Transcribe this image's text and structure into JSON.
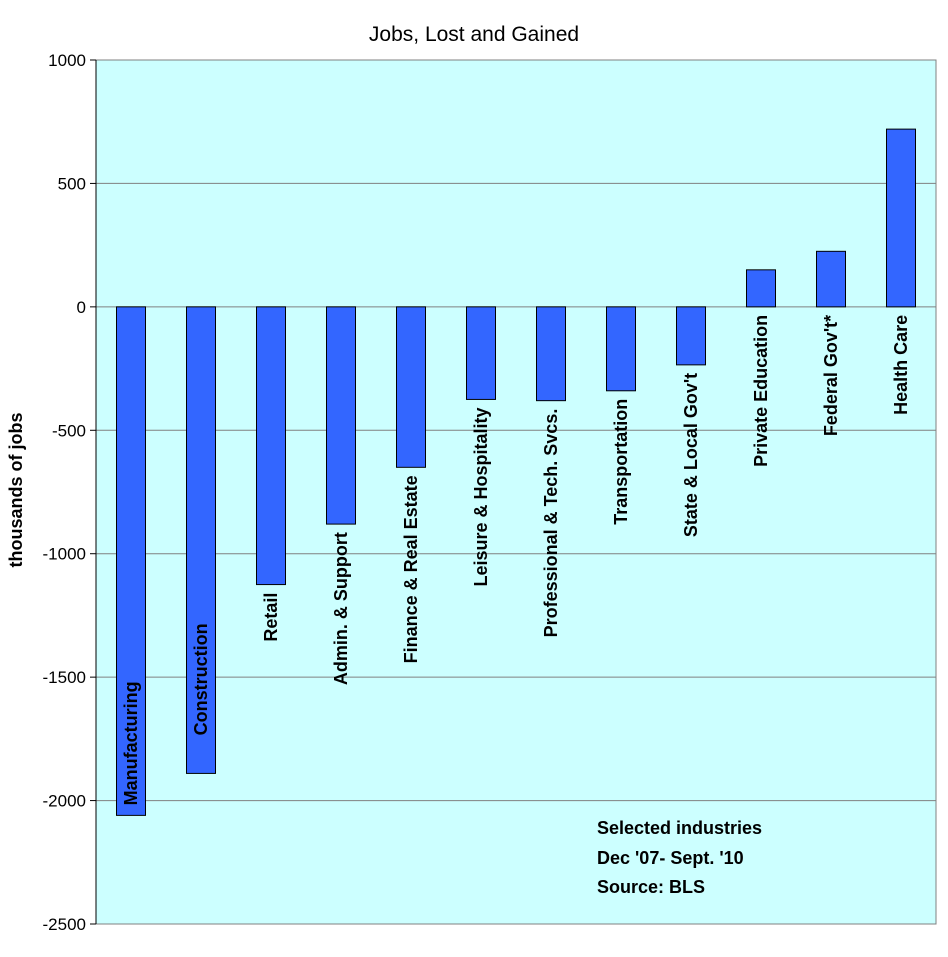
{
  "chart_data": {
    "type": "bar",
    "title": "Jobs, Lost and Gained",
    "ylabel": "thousands of jobs",
    "xlabel": "",
    "ylim": [
      -2500,
      1000
    ],
    "yticks": [
      "1000",
      "500",
      "0",
      "-500",
      "-1000",
      "-1500",
      "-2000",
      "-2500"
    ],
    "grid": true,
    "categories": [
      "Manufacturing",
      "Construction",
      "Retail",
      "Admin. & Support",
      "Finance & Real Estate",
      "Leisure & Hospitality",
      "Professional & Tech. Svcs.",
      "Transportation",
      "State & Local Gov't",
      "Private Education",
      "Federal Gov't*",
      "Health Care"
    ],
    "values": [
      -2060,
      -1890,
      -1125,
      -880,
      -650,
      -375,
      -380,
      -340,
      -235,
      150,
      225,
      720
    ],
    "notes": [
      "Selected industries",
      "Dec '07- Sept. '10",
      "Source: BLS"
    ],
    "colors": {
      "bar": "#3366ff",
      "bar_stroke": "#000000",
      "plot_bg": "#ccffff",
      "grid": "#808080"
    }
  }
}
